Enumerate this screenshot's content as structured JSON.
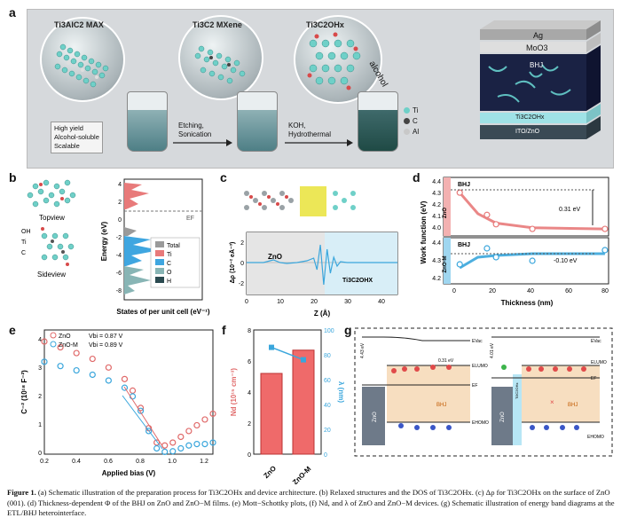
{
  "panel_letters": {
    "a": "a",
    "b": "b",
    "c": "c",
    "d": "d",
    "e": "e",
    "f": "f",
    "g": "g"
  },
  "panel_a": {
    "circle_titles": [
      "Ti3AlC2 MAX",
      "Ti3C2 MXene",
      "Ti3C2OHx"
    ],
    "alcohol_label": "alcohol",
    "features": [
      "High yield",
      "Alcohol-soluble",
      "Scalable"
    ],
    "step1": [
      "Etching,",
      "Sonication"
    ],
    "step2": [
      "KOH,",
      "Hydrothermal"
    ],
    "legend": [
      {
        "label": "Ti",
        "color": "#6fd0c8"
      },
      {
        "label": "C",
        "color": "#444444"
      },
      {
        "label": "Al",
        "color": "#c8c8c8"
      }
    ],
    "device_layers": [
      "Ag",
      "MoO3",
      "BHJ",
      "Ti3C2OHx",
      "ITO/ZnO"
    ]
  },
  "panel_b": {
    "topview": "Topview",
    "sideview": "Sideview",
    "oh_label": "OH",
    "ti_label": "Ti",
    "c_label": "C",
    "ylabel": "Energy (eV)",
    "xlabel": "States of per unit cell (eV⁻¹)",
    "ef_label": "EF",
    "yticks": [
      "4",
      "2",
      "0",
      "-2",
      "-4",
      "-6",
      "-8"
    ],
    "legend": [
      {
        "label": "Total",
        "color": "#9a9a9a"
      },
      {
        "label": "Ti",
        "color": "#e87a7a"
      },
      {
        "label": "C",
        "color": "#3fa6e0"
      },
      {
        "label": "O",
        "color": "#88b5b5"
      },
      {
        "label": "H",
        "color": "#2b4a50"
      }
    ]
  },
  "panel_c": {
    "ylabel": "Δρ (10⁻² eÅ⁻³)",
    "xlabel": "Z (Å)",
    "zno_label": "ZnO",
    "ti_label": "Ti3C2OHX",
    "xticks": [
      "0",
      "10",
      "20",
      "30",
      "40"
    ],
    "yticks": [
      "2",
      "0",
      "-2"
    ]
  },
  "panel_d": {
    "ylabel": "Work function (eV)",
    "xlabel": "Thickness (nm)",
    "top_label": "BHJ",
    "top_side": "ZnO",
    "top_delta": "0.31 eV",
    "bottom_label": "BHJ",
    "bottom_side": "ZnO-M",
    "bottom_delta": "-0.10 eV",
    "xticks": [
      "0",
      "20",
      "40",
      "60",
      "80"
    ],
    "top_yticks": [
      "4.4",
      "4.3",
      "4.2",
      "4.1",
      "4.0"
    ],
    "bottom_yticks": [
      "4.4",
      "4.3",
      "4.2"
    ]
  },
  "panel_e": {
    "legend": [
      {
        "label": "ZnO",
        "vbi": "Vbi = 0.87 V",
        "color": "#e06a6a"
      },
      {
        "label": "ZnO-M",
        "vbi": "Vbi = 0.89 V",
        "color": "#3aa6dc"
      }
    ],
    "ylabel": "C⁻² (10¹⁸ F⁻²)",
    "xlabel": "Applied bias (V)",
    "xticks": [
      "0.2",
      "0.4",
      "0.6",
      "0.8",
      "1.0",
      "1.2"
    ],
    "yticks": [
      "4",
      "3",
      "2",
      "1",
      "0"
    ]
  },
  "panel_f": {
    "ylabel_left": "Nd (10¹⁵ cm⁻³)",
    "ylabel_right": "λ (nm)",
    "left_yticks": [
      "8",
      "6",
      "4",
      "2",
      "0"
    ],
    "right_yticks": [
      "100",
      "80",
      "60",
      "40",
      "20",
      "0"
    ],
    "categories": [
      "ZnO",
      "ZnO-M"
    ]
  },
  "panel_g": {
    "left": {
      "evac": "EVac",
      "elumo": "ELUMO",
      "ef": "EF",
      "ehomo": "EHOMO",
      "bhj": "BHJ",
      "zno": "ZnO",
      "wf": "4.43 eV",
      "delta": "0.31 eV"
    },
    "right": {
      "evac": "EVac",
      "elumo": "ELUMO",
      "ef": "EF",
      "ehomo": "EHOMO",
      "bhj": "BHJ",
      "zno": "ZnO",
      "wf": "4.01 eV",
      "interlayer": "Ti3C2OHx"
    }
  },
  "chart_data": [
    {
      "type": "line",
      "title": "",
      "xlabel": "Thickness (nm)",
      "ylabel": "Work function (eV)",
      "panel": "d-top ZnO",
      "x": [
        0,
        15,
        20,
        40,
        80
      ],
      "values": [
        4.32,
        4.13,
        4.05,
        4.01,
        4.01
      ],
      "fit": [
        [
          0,
          4.32
        ],
        [
          10,
          4.14
        ],
        [
          20,
          4.06
        ],
        [
          40,
          4.02
        ],
        [
          80,
          4.01
        ]
      ],
      "ylim": [
        3.95,
        4.45
      ],
      "xlim": [
        -5,
        82
      ]
    },
    {
      "type": "line",
      "title": "",
      "xlabel": "Thickness (nm)",
      "ylabel": "Work function (eV)",
      "panel": "d-bottom ZnO-M",
      "x": [
        0,
        15,
        20,
        40,
        80
      ],
      "values": [
        4.29,
        4.38,
        4.33,
        4.31,
        4.37
      ],
      "fit": [
        [
          0,
          4.27
        ],
        [
          10,
          4.33
        ],
        [
          20,
          4.34
        ],
        [
          40,
          4.35
        ],
        [
          80,
          4.35
        ]
      ],
      "ylim": [
        4.18,
        4.44
      ],
      "xlim": [
        -5,
        82
      ]
    },
    {
      "type": "scatter",
      "title": "",
      "xlabel": "Applied bias (V)",
      "ylabel": "C⁻² (10¹⁸ F⁻²)",
      "panel": "e",
      "xlim": [
        0.2,
        1.25
      ],
      "ylim": [
        0,
        4.3
      ],
      "series": [
        {
          "name": "ZnO",
          "x": [
            0.2,
            0.3,
            0.4,
            0.5,
            0.6,
            0.7,
            0.75,
            0.8,
            0.85,
            0.9,
            0.95,
            1.0,
            1.05,
            1.1,
            1.15,
            1.2,
            1.25
          ],
          "values": [
            3.9,
            3.7,
            3.5,
            3.3,
            3.0,
            2.6,
            2.2,
            1.6,
            0.9,
            0.4,
            0.3,
            0.4,
            0.6,
            0.8,
            1.0,
            1.2,
            1.4
          ]
        },
        {
          "name": "ZnO-M",
          "x": [
            0.2,
            0.3,
            0.4,
            0.5,
            0.6,
            0.7,
            0.75,
            0.8,
            0.85,
            0.9,
            0.95,
            1.0,
            1.05,
            1.1,
            1.15,
            1.2,
            1.25
          ],
          "values": [
            3.2,
            3.05,
            2.9,
            2.75,
            2.55,
            2.3,
            2.0,
            1.5,
            0.8,
            0.2,
            0.08,
            0.1,
            0.2,
            0.3,
            0.35,
            0.35,
            0.4
          ]
        }
      ]
    },
    {
      "type": "bar",
      "title": "",
      "panel": "f",
      "categories": [
        "ZnO",
        "ZnO-M"
      ],
      "series": [
        {
          "name": "Nd",
          "values": [
            5.2,
            6.7
          ],
          "axis": "left",
          "ylim": [
            0,
            8
          ]
        },
        {
          "name": "λ",
          "values": [
            86,
            76
          ],
          "axis": "right",
          "ylim": [
            0,
            100
          ]
        }
      ]
    },
    {
      "type": "line",
      "title": "",
      "panel": "c",
      "xlabel": "Z (Å)",
      "ylabel": "Δρ (10⁻² eÅ⁻³)",
      "xlim": [
        0,
        45
      ],
      "ylim": [
        -3,
        3
      ],
      "x": [
        0,
        5,
        8,
        10,
        12,
        15,
        18,
        20,
        21,
        22,
        23,
        24,
        25,
        26,
        27,
        28,
        30,
        35,
        40,
        45
      ],
      "values": [
        0,
        0,
        0.3,
        0,
        -0.1,
        0,
        0.2,
        0.5,
        -0.8,
        2.0,
        -2.5,
        1.5,
        -1.2,
        0.6,
        -0.4,
        0.1,
        0,
        0,
        0,
        0
      ]
    }
  ],
  "caption": {
    "fig": "Figure 1.",
    "text": " (a) Schematic illustration of the preparation process for Ti3C2OHx and device architecture. (b) Relaxed structures and the DOS of Ti3C2OHx. (c) Δρ for Ti3C2OHx on the surface of ZnO (001). (d) Thickness-dependent Φ of the BHJ on ZnO and ZnO−M films. (e) Mott−Schottky plots, (f) Nd, and λ of ZnO and ZnO−M devices. (g) Schematic illustration of energy band diagrams at the ETL/BHJ heterointerface."
  }
}
